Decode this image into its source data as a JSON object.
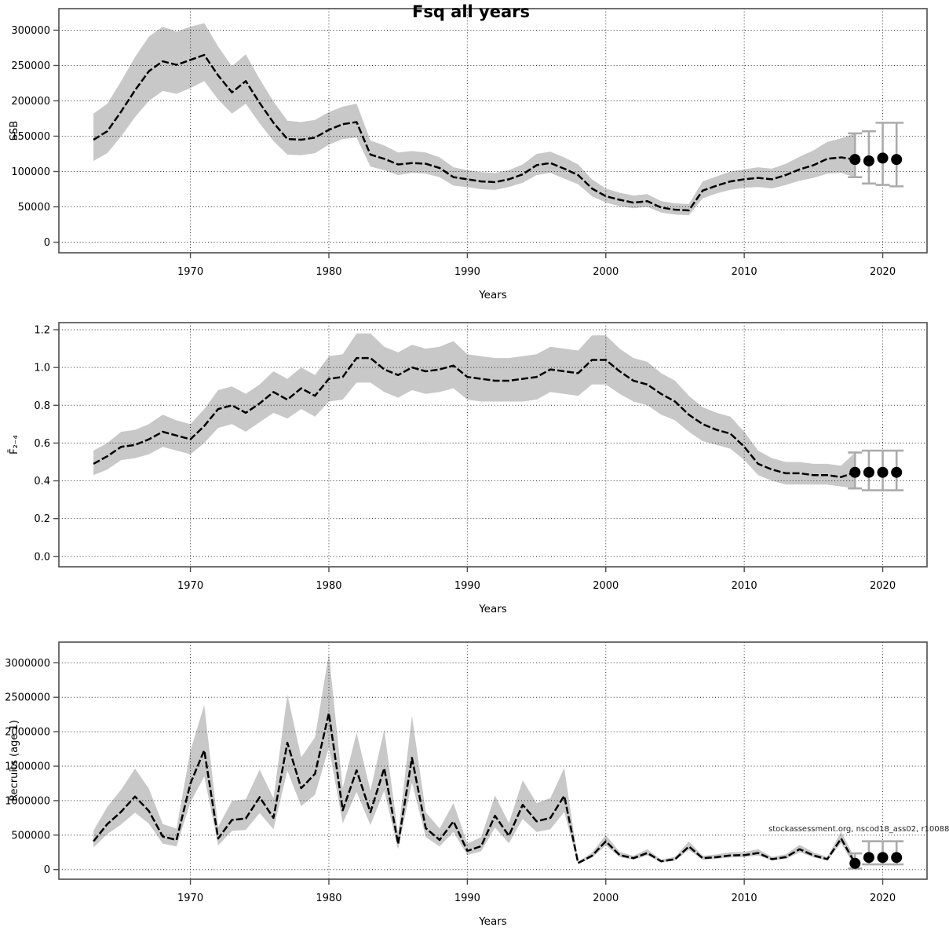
{
  "title": "Fsq all years",
  "annotation": "stockassessment.org, nscod18_ass02, r10088",
  "colors": {
    "background": "#ffffff",
    "band": "#c8c8c8",
    "line": "#000000",
    "grid": "#1a1a1a",
    "frame": "#4d4d4d",
    "errorbar": "#ababab",
    "dot": "#000000",
    "tick_label": "#000000"
  },
  "chart_data": [
    {
      "id": "ssb",
      "type": "line",
      "ylabel": "SSB",
      "xlabel": "Years",
      "grid": true,
      "legend_position": "none",
      "xlim": [
        1960.5,
        2023.2
      ],
      "ylim": [
        -15000,
        330500
      ],
      "x_ticks": [
        1970,
        1980,
        1990,
        2000,
        2010,
        2020
      ],
      "x_tick_labels": [
        "1970",
        "1980",
        "1990",
        "2000",
        "2010",
        "2020"
      ],
      "y_ticks": [
        0,
        50000,
        100000,
        150000,
        200000,
        250000,
        300000
      ],
      "y_tick_labels": [
        "0",
        "50000",
        "100000",
        "150000",
        "200000",
        "250000",
        "300000"
      ],
      "years": [
        1963,
        1964,
        1965,
        1966,
        1967,
        1968,
        1969,
        1970,
        1971,
        1972,
        1973,
        1974,
        1975,
        1976,
        1977,
        1978,
        1979,
        1980,
        1981,
        1982,
        1983,
        1984,
        1985,
        1986,
        1987,
        1988,
        1989,
        1990,
        1991,
        1992,
        1993,
        1994,
        1995,
        1996,
        1997,
        1998,
        1999,
        2000,
        2001,
        2002,
        2003,
        2004,
        2005,
        2006,
        2007,
        2008,
        2009,
        2010,
        2011,
        2012,
        2013,
        2014,
        2015,
        2016,
        2017,
        2018
      ],
      "values": [
        145000,
        157000,
        185000,
        215000,
        242000,
        256000,
        251000,
        258000,
        265000,
        236000,
        212000,
        228000,
        197000,
        169000,
        146000,
        145000,
        148000,
        159000,
        167000,
        170000,
        124000,
        118000,
        110000,
        112000,
        111000,
        105000,
        92000,
        89000,
        86000,
        85000,
        89000,
        96000,
        109000,
        112000,
        104000,
        95000,
        76000,
        65000,
        60000,
        56000,
        58000,
        49000,
        46000,
        45000,
        73000,
        80000,
        86000,
        89000,
        91000,
        89000,
        95000,
        103000,
        109000,
        118000,
        120000,
        117000
      ],
      "lo": [
        115000,
        126000,
        150000,
        177000,
        200000,
        214000,
        210000,
        218000,
        228000,
        202000,
        182000,
        196000,
        168000,
        143000,
        124000,
        123000,
        126000,
        138000,
        146000,
        148000,
        107000,
        102000,
        95000,
        98000,
        97000,
        92000,
        80000,
        78000,
        75000,
        74000,
        78000,
        84000,
        95000,
        98000,
        90000,
        82000,
        65000,
        56000,
        51000,
        48000,
        50000,
        42000,
        39000,
        38000,
        62000,
        69000,
        74000,
        77000,
        78000,
        76000,
        81000,
        87000,
        91000,
        97000,
        98000,
        92000
      ],
      "hi": [
        182000,
        196000,
        228000,
        262000,
        291000,
        305000,
        298000,
        305000,
        310000,
        277000,
        249000,
        266000,
        231000,
        199000,
        172000,
        170000,
        173000,
        184000,
        192000,
        196000,
        144000,
        137000,
        127000,
        129000,
        127000,
        120000,
        106000,
        102000,
        99000,
        98000,
        102000,
        110000,
        125000,
        128000,
        120000,
        110000,
        89000,
        76000,
        70000,
        66000,
        68000,
        58000,
        55000,
        54000,
        86000,
        93000,
        100000,
        103000,
        106000,
        104000,
        111000,
        121000,
        130000,
        142000,
        147000,
        154000
      ],
      "forecast": {
        "years": [
          2018,
          2019,
          2020,
          2021
        ],
        "values": [
          117000,
          115000,
          119000,
          117000
        ],
        "lo": [
          92000,
          83000,
          81000,
          79000
        ],
        "hi": [
          154000,
          157000,
          169000,
          169000
        ]
      }
    },
    {
      "id": "fbar",
      "type": "line",
      "ylabel": "F̄₂₋₄",
      "xlabel": "Years",
      "grid": true,
      "legend_position": "none",
      "xlim": [
        1960.5,
        2023.2
      ],
      "ylim": [
        -0.055,
        1.2375
      ],
      "x_ticks": [
        1970,
        1980,
        1990,
        2000,
        2010,
        2020
      ],
      "x_tick_labels": [
        "1970",
        "1980",
        "1990",
        "2000",
        "2010",
        "2020"
      ],
      "y_ticks": [
        0.0,
        0.2,
        0.4,
        0.6,
        0.8,
        1.0,
        1.2
      ],
      "y_tick_labels": [
        "0.0",
        "0.2",
        "0.4",
        "0.6",
        "0.8",
        "1.0",
        "1.2"
      ],
      "years": [
        1963,
        1964,
        1965,
        1966,
        1967,
        1968,
        1969,
        1970,
        1971,
        1972,
        1973,
        1974,
        1975,
        1976,
        1977,
        1978,
        1979,
        1980,
        1981,
        1982,
        1983,
        1984,
        1985,
        1986,
        1987,
        1988,
        1989,
        1990,
        1991,
        1992,
        1993,
        1994,
        1995,
        1996,
        1997,
        1998,
        1999,
        2000,
        2001,
        2002,
        2003,
        2004,
        2005,
        2006,
        2007,
        2008,
        2009,
        2010,
        2011,
        2012,
        2013,
        2014,
        2015,
        2016,
        2017,
        2018
      ],
      "values": [
        0.49,
        0.53,
        0.58,
        0.59,
        0.62,
        0.66,
        0.64,
        0.62,
        0.69,
        0.78,
        0.8,
        0.76,
        0.81,
        0.87,
        0.83,
        0.89,
        0.85,
        0.94,
        0.95,
        1.05,
        1.05,
        0.99,
        0.96,
        1.0,
        0.98,
        0.99,
        1.01,
        0.95,
        0.94,
        0.93,
        0.93,
        0.94,
        0.95,
        0.99,
        0.98,
        0.97,
        1.04,
        1.04,
        0.98,
        0.93,
        0.91,
        0.86,
        0.82,
        0.75,
        0.7,
        0.67,
        0.65,
        0.58,
        0.49,
        0.46,
        0.44,
        0.44,
        0.43,
        0.43,
        0.42,
        0.445
      ],
      "lo": [
        0.43,
        0.46,
        0.51,
        0.52,
        0.54,
        0.58,
        0.56,
        0.54,
        0.6,
        0.68,
        0.7,
        0.66,
        0.71,
        0.76,
        0.73,
        0.78,
        0.74,
        0.82,
        0.83,
        0.92,
        0.92,
        0.87,
        0.84,
        0.88,
        0.86,
        0.87,
        0.89,
        0.83,
        0.82,
        0.82,
        0.82,
        0.82,
        0.83,
        0.87,
        0.86,
        0.85,
        0.91,
        0.91,
        0.86,
        0.82,
        0.8,
        0.75,
        0.72,
        0.66,
        0.61,
        0.59,
        0.57,
        0.51,
        0.43,
        0.4,
        0.38,
        0.38,
        0.38,
        0.38,
        0.37,
        0.36
      ],
      "hi": [
        0.56,
        0.6,
        0.66,
        0.67,
        0.7,
        0.75,
        0.72,
        0.7,
        0.78,
        0.88,
        0.9,
        0.86,
        0.91,
        0.98,
        0.94,
        1.0,
        0.96,
        1.06,
        1.07,
        1.18,
        1.18,
        1.11,
        1.08,
        1.12,
        1.1,
        1.11,
        1.14,
        1.07,
        1.06,
        1.05,
        1.05,
        1.06,
        1.07,
        1.11,
        1.1,
        1.09,
        1.17,
        1.17,
        1.1,
        1.05,
        1.03,
        0.97,
        0.93,
        0.85,
        0.79,
        0.76,
        0.74,
        0.66,
        0.56,
        0.52,
        0.5,
        0.5,
        0.49,
        0.49,
        0.48,
        0.55
      ],
      "forecast": {
        "years": [
          2018,
          2019,
          2020,
          2021
        ],
        "values": [
          0.445,
          0.445,
          0.445,
          0.445
        ],
        "lo": [
          0.36,
          0.35,
          0.35,
          0.35
        ],
        "hi": [
          0.55,
          0.56,
          0.56,
          0.56
        ]
      }
    },
    {
      "id": "recruits",
      "type": "line",
      "ylabel": "Recruits (age 1)",
      "xlabel": "Years",
      "grid": true,
      "legend_position": "none",
      "xlim": [
        1960.5,
        2023.2
      ],
      "ylim": [
        -140000,
        3300000
      ],
      "x_ticks": [
        1970,
        1980,
        1990,
        2000,
        2010,
        2020
      ],
      "x_tick_labels": [
        "1970",
        "1980",
        "1990",
        "2000",
        "2010",
        "2020"
      ],
      "y_ticks": [
        0,
        500000,
        1000000,
        1500000,
        2000000,
        2500000,
        3000000
      ],
      "y_tick_labels": [
        "0",
        "500000",
        "1000000",
        "1500000",
        "2000000",
        "2500000",
        "3000000"
      ],
      "years": [
        1963,
        1964,
        1965,
        1966,
        1967,
        1968,
        1969,
        1970,
        1971,
        1972,
        1973,
        1974,
        1975,
        1976,
        1977,
        1978,
        1979,
        1980,
        1981,
        1982,
        1983,
        1984,
        1985,
        1986,
        1987,
        1988,
        1989,
        1990,
        1991,
        1992,
        1993,
        1994,
        1995,
        1996,
        1997,
        1998,
        1999,
        2000,
        2001,
        2002,
        2003,
        2004,
        2005,
        2006,
        2007,
        2008,
        2009,
        2010,
        2011,
        2012,
        2013,
        2014,
        2015,
        2016,
        2017,
        2018
      ],
      "values": [
        410000,
        660000,
        840000,
        1060000,
        850000,
        480000,
        430000,
        1250000,
        1730000,
        450000,
        720000,
        740000,
        1050000,
        750000,
        1840000,
        1180000,
        1390000,
        2270000,
        860000,
        1440000,
        830000,
        1470000,
        370000,
        1620000,
        600000,
        430000,
        700000,
        270000,
        340000,
        780000,
        490000,
        940000,
        700000,
        750000,
        1070000,
        95000,
        200000,
        410000,
        210000,
        165000,
        240000,
        120000,
        150000,
        335000,
        165000,
        180000,
        205000,
        210000,
        240000,
        150000,
        180000,
        295000,
        205000,
        150000,
        450000,
        90000
      ],
      "lo": [
        320000,
        515000,
        655000,
        825000,
        665000,
        375000,
        335000,
        975000,
        1350000,
        350000,
        560000,
        575000,
        820000,
        585000,
        1435000,
        920000,
        1085000,
        1770000,
        670000,
        1125000,
        645000,
        1145000,
        290000,
        1265000,
        470000,
        335000,
        545000,
        210000,
        265000,
        610000,
        380000,
        735000,
        545000,
        585000,
        835000,
        80000,
        170000,
        350000,
        180000,
        140000,
        205000,
        100000,
        130000,
        285000,
        140000,
        155000,
        175000,
        180000,
        205000,
        130000,
        155000,
        250000,
        175000,
        130000,
        385000,
        30000
      ],
      "hi": [
        565000,
        910000,
        1160000,
        1465000,
        1175000,
        660000,
        595000,
        1725000,
        2385000,
        620000,
        995000,
        1020000,
        1450000,
        1035000,
        2540000,
        1630000,
        1920000,
        3130000,
        1185000,
        1985000,
        1145000,
        2030000,
        510000,
        2235000,
        830000,
        595000,
        965000,
        375000,
        470000,
        1075000,
        675000,
        1295000,
        965000,
        1035000,
        1475000,
        115000,
        245000,
        500000,
        255000,
        200000,
        295000,
        145000,
        185000,
        410000,
        200000,
        220000,
        250000,
        255000,
        295000,
        185000,
        220000,
        360000,
        250000,
        185000,
        550000,
        160000
      ],
      "forecast": {
        "years": [
          2018,
          2019,
          2020,
          2021
        ],
        "values": [
          90000,
          175000,
          175000,
          175000
        ],
        "lo": [
          15000,
          75000,
          75000,
          75000
        ],
        "hi": [
          235000,
          410000,
          410000,
          410000
        ]
      }
    }
  ]
}
